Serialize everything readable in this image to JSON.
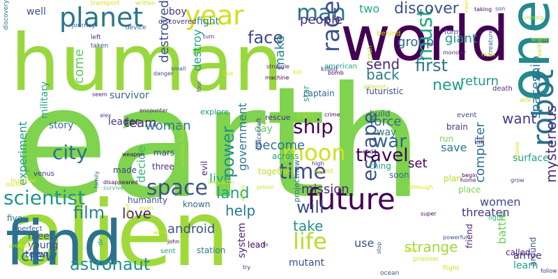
{
  "word_cloud": {
    "background": "#ffffff",
    "words": [
      {
        "text": "earth",
        "color": "#7fd34e",
        "rotated": false
      },
      {
        "text": "alien",
        "color": "#9fda3a",
        "rotated": false
      },
      {
        "text": "human",
        "color": "#98d83e",
        "rotated": false
      },
      {
        "text": "world",
        "color": "#440154",
        "rotated": false
      },
      {
        "text": "find",
        "color": "#2c728e",
        "rotated": false
      },
      {
        "text": "one",
        "color": "#23898e",
        "rotated": true
      },
      {
        "text": "planet",
        "color": "#2a768e",
        "rotated": false
      },
      {
        "text": "year",
        "color": "#d0e11c",
        "rotated": false
      },
      {
        "text": "future",
        "color": "#440154",
        "rotated": false
      },
      {
        "text": "moon",
        "color": "#d0e11c",
        "rotated": false
      },
      {
        "text": "robot",
        "color": "#2c728e",
        "rotated": true
      },
      {
        "text": "space",
        "color": "#3b528b",
        "rotated": false
      },
      {
        "text": "scientist",
        "color": "#1f968b",
        "rotated": false
      },
      {
        "text": "man",
        "color": "#2a788e",
        "rotated": false
      },
      {
        "text": "life",
        "color": "#b5de2b",
        "rotated": false
      },
      {
        "text": "ship",
        "color": "#440154",
        "rotated": false
      },
      {
        "text": "time",
        "color": "#3e4989",
        "rotated": false
      },
      {
        "text": "race",
        "color": "#3b528b",
        "rotated": true
      },
      {
        "text": "must",
        "color": "#22a884",
        "rotated": true
      },
      {
        "text": "first",
        "color": "#2c728e",
        "rotated": false
      },
      {
        "text": "war",
        "color": "#32648e",
        "rotated": false
      },
      {
        "text": "city",
        "color": "#2c728e",
        "rotated": false
      },
      {
        "text": "escape",
        "color": "#3b528b",
        "rotated": true
      },
      {
        "text": "new",
        "color": "#1f9e89",
        "rotated": false
      },
      {
        "text": "face",
        "color": "#3e4989",
        "rotated": false
      },
      {
        "text": "discover",
        "color": "#3b528b",
        "rotated": false
      },
      {
        "text": "power",
        "color": "#21918c",
        "rotated": true
      },
      {
        "text": "travel",
        "color": "#440154",
        "rotated": false
      },
      {
        "text": "film",
        "color": "#25848e",
        "rotated": false
      },
      {
        "text": "crew",
        "color": "#30678e",
        "rotated": false
      },
      {
        "text": "astronaut",
        "color": "#21918c",
        "rotated": false
      },
      {
        "text": "will",
        "color": "#3b528b",
        "rotated": false
      },
      {
        "text": "land",
        "color": "#1fa187",
        "rotated": false
      },
      {
        "text": "love",
        "color": "#481f70",
        "rotated": false
      },
      {
        "text": "team",
        "color": "#482878",
        "rotated": false
      },
      {
        "text": "woman",
        "color": "#2c728e",
        "rotated": false
      },
      {
        "text": "force",
        "color": "#31688e",
        "rotated": false
      },
      {
        "text": "want",
        "color": "#443983",
        "rotated": false
      },
      {
        "text": "send",
        "color": "#482878",
        "rotated": false
      },
      {
        "text": "back",
        "color": "#2a788e",
        "rotated": false
      },
      {
        "text": "return",
        "color": "#1f968b",
        "rotated": false
      },
      {
        "text": "mysterious",
        "color": "#472d7b",
        "rotated": true
      },
      {
        "text": "spaceship",
        "color": "#2a788e",
        "rotated": true
      },
      {
        "text": "computer",
        "color": "#2c728e",
        "rotated": true
      },
      {
        "text": "take",
        "color": "#21918c",
        "rotated": false
      },
      {
        "text": "help",
        "color": "#2a788e",
        "rotated": false
      },
      {
        "text": "strange",
        "color": "#a0da39",
        "rotated": false
      },
      {
        "text": "android",
        "color": "#3b528b",
        "rotated": false
      },
      {
        "text": "become",
        "color": "#2c728e",
        "rotated": false
      },
      {
        "text": "mission",
        "color": "#482878",
        "rotated": false
      },
      {
        "text": "giant",
        "color": "#1f958b",
        "rotated": false
      },
      {
        "text": "come",
        "color": "#5ec962",
        "rotated": true
      },
      {
        "text": "set",
        "color": "#440154",
        "rotated": false
      },
      {
        "text": "save",
        "color": "#2a788e",
        "rotated": false
      },
      {
        "text": "women",
        "color": "#3e4a89",
        "rotated": false
      },
      {
        "text": "group",
        "color": "#31688e",
        "rotated": false
      },
      {
        "text": "people",
        "color": "#482878",
        "rotated": false
      },
      {
        "text": "two",
        "color": "#22a884",
        "rotated": false
      },
      {
        "text": "make",
        "color": "#23898e",
        "rotated": true
      },
      {
        "text": "live",
        "color": "#1fa187",
        "rotated": false
      },
      {
        "text": "destroyed",
        "color": "#3b528b",
        "rotated": true
      },
      {
        "text": "destroy",
        "color": "#1fa187",
        "rotated": true
      },
      {
        "text": "story",
        "color": "#2c728e",
        "rotated": false
      },
      {
        "text": "experiment",
        "color": "#1f9e89",
        "rotated": true
      },
      {
        "text": "decide",
        "color": "#35b779",
        "rotated": true
      },
      {
        "text": "government",
        "color": "#2a788e",
        "rotated": true
      },
      {
        "text": "system",
        "color": "#482878",
        "rotated": true
      },
      {
        "text": "meet",
        "color": "#3b528b",
        "rotated": false
      },
      {
        "text": "young",
        "color": "#3e4989",
        "rotated": false
      },
      {
        "text": "town",
        "color": "#3b528b",
        "rotated": false
      },
      {
        "text": "mutant",
        "color": "#3e4a89",
        "rotated": false
      },
      {
        "text": "battle",
        "color": "#6ece58",
        "rotated": true
      },
      {
        "text": "arrive",
        "color": "#482878",
        "rotated": false
      },
      {
        "text": "learn",
        "color": "#1fa187",
        "rotated": false
      },
      {
        "text": "threaten",
        "color": "#46327e",
        "rotated": false
      },
      {
        "text": "surface",
        "color": "#1fa187",
        "rotated": false
      },
      {
        "text": "military",
        "color": "#22a884",
        "rotated": true
      },
      {
        "text": "well",
        "color": "#3b528b",
        "rotated": false
      },
      {
        "text": "boy",
        "color": "#46327e",
        "rotated": false
      },
      {
        "text": "fight",
        "color": "#27808e",
        "rotated": false
      },
      {
        "text": "survivor",
        "color": "#31688e",
        "rotated": false
      },
      {
        "text": "leader",
        "color": "#46337f",
        "rotated": false
      },
      {
        "text": "star",
        "color": "#1f9e89",
        "rotated": true
      },
      {
        "text": "day",
        "color": "#5ec962",
        "rotated": false
      },
      {
        "text": "way",
        "color": "#2a788e",
        "rotated": false
      },
      {
        "text": "across",
        "color": "#1fa187",
        "rotated": false
      },
      {
        "text": "evil",
        "color": "#482878",
        "rotated": true
      },
      {
        "text": "known",
        "color": "#31688e",
        "rotated": false
      },
      {
        "text": "humanity",
        "color": "#3b528b",
        "rotated": false
      },
      {
        "text": "soon",
        "color": "#31688e",
        "rotated": false
      },
      {
        "text": "plan",
        "color": "#b5de2b",
        "rotated": false
      },
      {
        "text": "place",
        "color": "#7ad151",
        "rotated": false
      },
      {
        "text": "brain",
        "color": "#46337f",
        "rotated": false
      },
      {
        "text": "run",
        "color": "#7ad151",
        "rotated": false
      },
      {
        "text": "thing",
        "color": "#1f9e89",
        "rotated": false
      },
      {
        "text": "together",
        "color": "#bddf26",
        "rotated": false
      },
      {
        "text": "past",
        "color": "#a5db36",
        "rotated": false
      },
      {
        "text": "futuristic",
        "color": "#3e4989",
        "rotated": false
      },
      {
        "text": "captain",
        "color": "#31688e",
        "rotated": false
      },
      {
        "text": "build",
        "color": "#32648e",
        "rotated": false
      },
      {
        "text": "station",
        "color": "#287c8e",
        "rotated": false
      },
      {
        "text": "use",
        "color": "#3b528b",
        "rotated": false
      },
      {
        "text": "projectnow",
        "color": "#2c728e",
        "rotated": true
      },
      {
        "text": "nuclear",
        "color": "#d8e219",
        "rotated": false
      },
      {
        "text": "five",
        "color": "#2c728e",
        "rotated": false
      },
      {
        "text": "perfect",
        "color": "#3b528b",
        "rotated": false
      },
      {
        "text": "mars",
        "color": "#3e4989",
        "rotated": false
      },
      {
        "text": "three",
        "color": "#46327e",
        "rotated": false
      },
      {
        "text": "made",
        "color": "#3e4989",
        "rotated": false
      },
      {
        "text": "rescue",
        "color": "#46327e",
        "rotated": false
      },
      {
        "text": "explore",
        "color": "#1f968b",
        "rotated": false
      },
      {
        "text": "discovery",
        "color": "#2c728e",
        "rotated": true
      },
      {
        "text": "journey",
        "color": "#31688e",
        "rotated": false
      },
      {
        "text": "device",
        "color": "#31688e",
        "rotated": false
      },
      {
        "text": "discovered",
        "color": "#472d7b",
        "rotated": false
      },
      {
        "text": "left",
        "color": "#472d7b",
        "rotated": false
      },
      {
        "text": "taken",
        "color": "#3b528b",
        "rotated": false
      },
      {
        "text": "venus",
        "color": "#46337f",
        "rotated": false
      },
      {
        "text": "science fiction",
        "color": "#b5de2b",
        "rotated": true
      },
      {
        "text": "spacecraft",
        "color": "#3e4989",
        "rotated": true
      },
      {
        "text": "high",
        "color": "#46337f",
        "rotated": false
      },
      {
        "text": "secret",
        "color": "#d0e11c",
        "rotated": false
      },
      {
        "text": "death",
        "color": "#46337f",
        "rotated": false
      },
      {
        "text": "event",
        "color": "#3e4989",
        "rotated": false
      },
      {
        "text": "form",
        "color": "#3e4989",
        "rotated": false
      },
      {
        "text": "lead",
        "color": "#440154",
        "rotated": false
      },
      {
        "text": "friend",
        "color": "#481f70",
        "rotated": true
      },
      {
        "text": "dr",
        "color": "#1fa187",
        "rotated": true
      },
      {
        "text": "around",
        "color": "#3b528b",
        "rotated": true
      },
      {
        "text": "american",
        "color": "#1fa187",
        "rotated": false
      },
      {
        "text": "creature",
        "color": "#2c728e",
        "rotated": true
      },
      {
        "text": "kill",
        "color": "#482878",
        "rotated": false
      },
      {
        "text": "crash",
        "color": "#b5de2b",
        "rotated": true
      },
      {
        "text": "invasion",
        "color": "#d0e11c",
        "rotated": false
      },
      {
        "text": "transport",
        "color": "#d8e219",
        "rotated": false
      },
      {
        "text": "written",
        "color": "#d0e11c",
        "rotated": false
      },
      {
        "text": "wife",
        "color": "#d0e11c",
        "rotated": false
      },
      {
        "text": "near",
        "color": "#d8e219",
        "rotated": true
      },
      {
        "text": "men",
        "color": "#d0e11c",
        "rotated": false
      },
      {
        "text": "sent",
        "color": "#1fa187",
        "rotated": false
      },
      {
        "text": "called",
        "color": "#482878",
        "rotated": false
      },
      {
        "text": "follow",
        "color": "#46327e",
        "rotated": false
      },
      {
        "text": "disappeared",
        "color": "#440154",
        "rotated": false
      },
      {
        "text": "survive",
        "color": "#35b779",
        "rotated": false
      },
      {
        "text": "family",
        "color": "#31688e",
        "rotated": true
      },
      {
        "text": "doctor",
        "color": "#d8e219",
        "rotated": false
      },
      {
        "text": "professor",
        "color": "#d8e219",
        "rotated": false
      },
      {
        "text": "weapon",
        "color": "#440154",
        "rotated": false
      },
      {
        "text": "encounter",
        "color": "#482878",
        "rotated": false
      },
      {
        "text": "seem",
        "color": "#481f70",
        "rotated": false
      },
      {
        "text": "alex",
        "color": "#3e4989",
        "rotated": false
      },
      {
        "text": "danger",
        "color": "#3e4989",
        "rotated": false
      },
      {
        "text": "small",
        "color": "#3b528b",
        "rotated": false
      },
      {
        "text": "last",
        "color": "#d8e219",
        "rotated": false
      },
      {
        "text": "struggle",
        "color": "#481f70",
        "rotated": false
      },
      {
        "text": "machine",
        "color": "#440154",
        "rotated": false
      },
      {
        "text": "attempt",
        "color": "#d0e11c",
        "rotated": false
      },
      {
        "text": "behind",
        "color": "#d8e219",
        "rotated": false
      },
      {
        "text": "monster",
        "color": "#482878",
        "rotated": false
      },
      {
        "text": "powerful",
        "color": "#3b528b",
        "rotated": false
      },
      {
        "text": "prisoner",
        "color": "#d0e11c",
        "rotated": false
      },
      {
        "text": "ocean",
        "color": "#3b528b",
        "rotated": false
      },
      {
        "text": "stop",
        "color": "#3b528b",
        "rotated": true
      },
      {
        "text": "enemy",
        "color": "#d8e219",
        "rotated": false
      },
      {
        "text": "son",
        "color": "#3b528b",
        "rotated": false
      },
      {
        "text": "taking",
        "color": "#440154",
        "rotated": false
      },
      {
        "text": "mining",
        "color": "#b5de2b",
        "rotated": false
      },
      {
        "text": "reality",
        "color": "#d0e11c",
        "rotated": true
      },
      {
        "text": "killed",
        "color": "#3e4989",
        "rotated": false
      },
      {
        "text": "short",
        "color": "#d8e219",
        "rotated": true
      },
      {
        "text": "light",
        "color": "#35b779",
        "rotated": false
      },
      {
        "text": "flight",
        "color": "#d0e11c",
        "rotated": false
      },
      {
        "text": "super",
        "color": "#440154",
        "rotated": false
      },
      {
        "text": "although",
        "color": "#d8e219",
        "rotated": false
      },
      {
        "text": "home",
        "color": "#481f70",
        "rotated": false
      },
      {
        "text": "begin",
        "color": "#440154",
        "rotated": false
      },
      {
        "text": "grow",
        "color": "#3e4989",
        "rotated": false
      },
      {
        "text": "movie",
        "color": "#d0e11c",
        "rotated": true
      },
      {
        "text": "tv",
        "color": "#3e4989",
        "rotated": false
      },
      {
        "text": "try",
        "color": "#482878",
        "rotated": false
      },
      {
        "text": "john",
        "color": "#440154",
        "rotated": false
      },
      {
        "text": "turn",
        "color": "#482878",
        "rotated": false
      },
      {
        "text": "bomb",
        "color": "#440154",
        "rotated": false
      },
      {
        "text": "four",
        "color": "#3e4989",
        "rotated": true
      },
      {
        "text": "crime",
        "color": "#440154",
        "rotated": false
      },
      {
        "text": "end",
        "color": "#440154",
        "rotated": false
      },
      {
        "text": "prison",
        "color": "#d0e11c",
        "rotated": false
      },
      {
        "text": "keep",
        "color": "#d8e219",
        "rotated": false
      },
      {
        "text": "entire",
        "color": "#d8e219",
        "rotated": true
      },
      {
        "text": "even",
        "color": "#d8e219",
        "rotated": false
      },
      {
        "text": "work",
        "color": "#d8e219",
        "rotated": false
      },
      {
        "text": "kid",
        "color": "#d8e219",
        "rotated": false
      }
    ]
  }
}
